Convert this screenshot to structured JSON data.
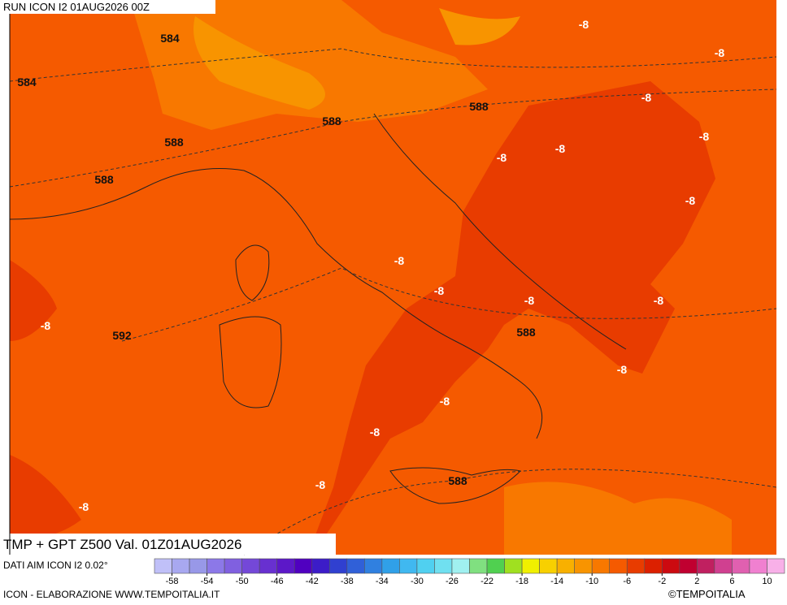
{
  "header": {
    "run": "RUN ICON I2 01AUG2026 00Z"
  },
  "title": "TMP + GPT Z500 Val. 01Z01AUG2026",
  "source": "DATI AIM ICON I2 0.02°",
  "credit": "ICON - ELABORAZIONE WWW.TEMPOITALIA.IT",
  "brand": "©TEMPOITALIA",
  "contour_labels": {
    "height": [
      584,
      584,
      588,
      588,
      588,
      588,
      592,
      588,
      588
    ],
    "temperature": [
      -8,
      -8,
      -8,
      -8,
      -8,
      -8,
      -8,
      -8,
      -8,
      -8,
      -8,
      -8,
      -8,
      -8,
      -8,
      -8,
      -8
    ]
  },
  "colorbar": {
    "range": [
      -60,
      12
    ],
    "ticks": [
      -58,
      -54,
      -50,
      -46,
      -42,
      -38,
      -34,
      -30,
      -26,
      -22,
      -18,
      -14,
      -10,
      -6,
      -2,
      2,
      6,
      10
    ],
    "colors": [
      "#c0c0f8",
      "#a8a8f0",
      "#9898e8",
      "#8c78e8",
      "#8060e0",
      "#7448d8",
      "#6830d0",
      "#5c18c8",
      "#5000c0",
      "#3c1cc8",
      "#3040d0",
      "#3060d8",
      "#3080e0",
      "#30a0e8",
      "#40b8f0",
      "#50d0f0",
      "#70e0f0",
      "#a0f0f0",
      "#80e080",
      "#50d050",
      "#a0e020",
      "#f0f000",
      "#f8d000",
      "#f8b000",
      "#f89400",
      "#f87800",
      "#f55a00",
      "#e83c00",
      "#dc2000",
      "#cc0a10",
      "#c00030",
      "#c02060",
      "#d04090",
      "#e060b0",
      "#f080d0",
      "#f8b0e8"
    ]
  }
}
